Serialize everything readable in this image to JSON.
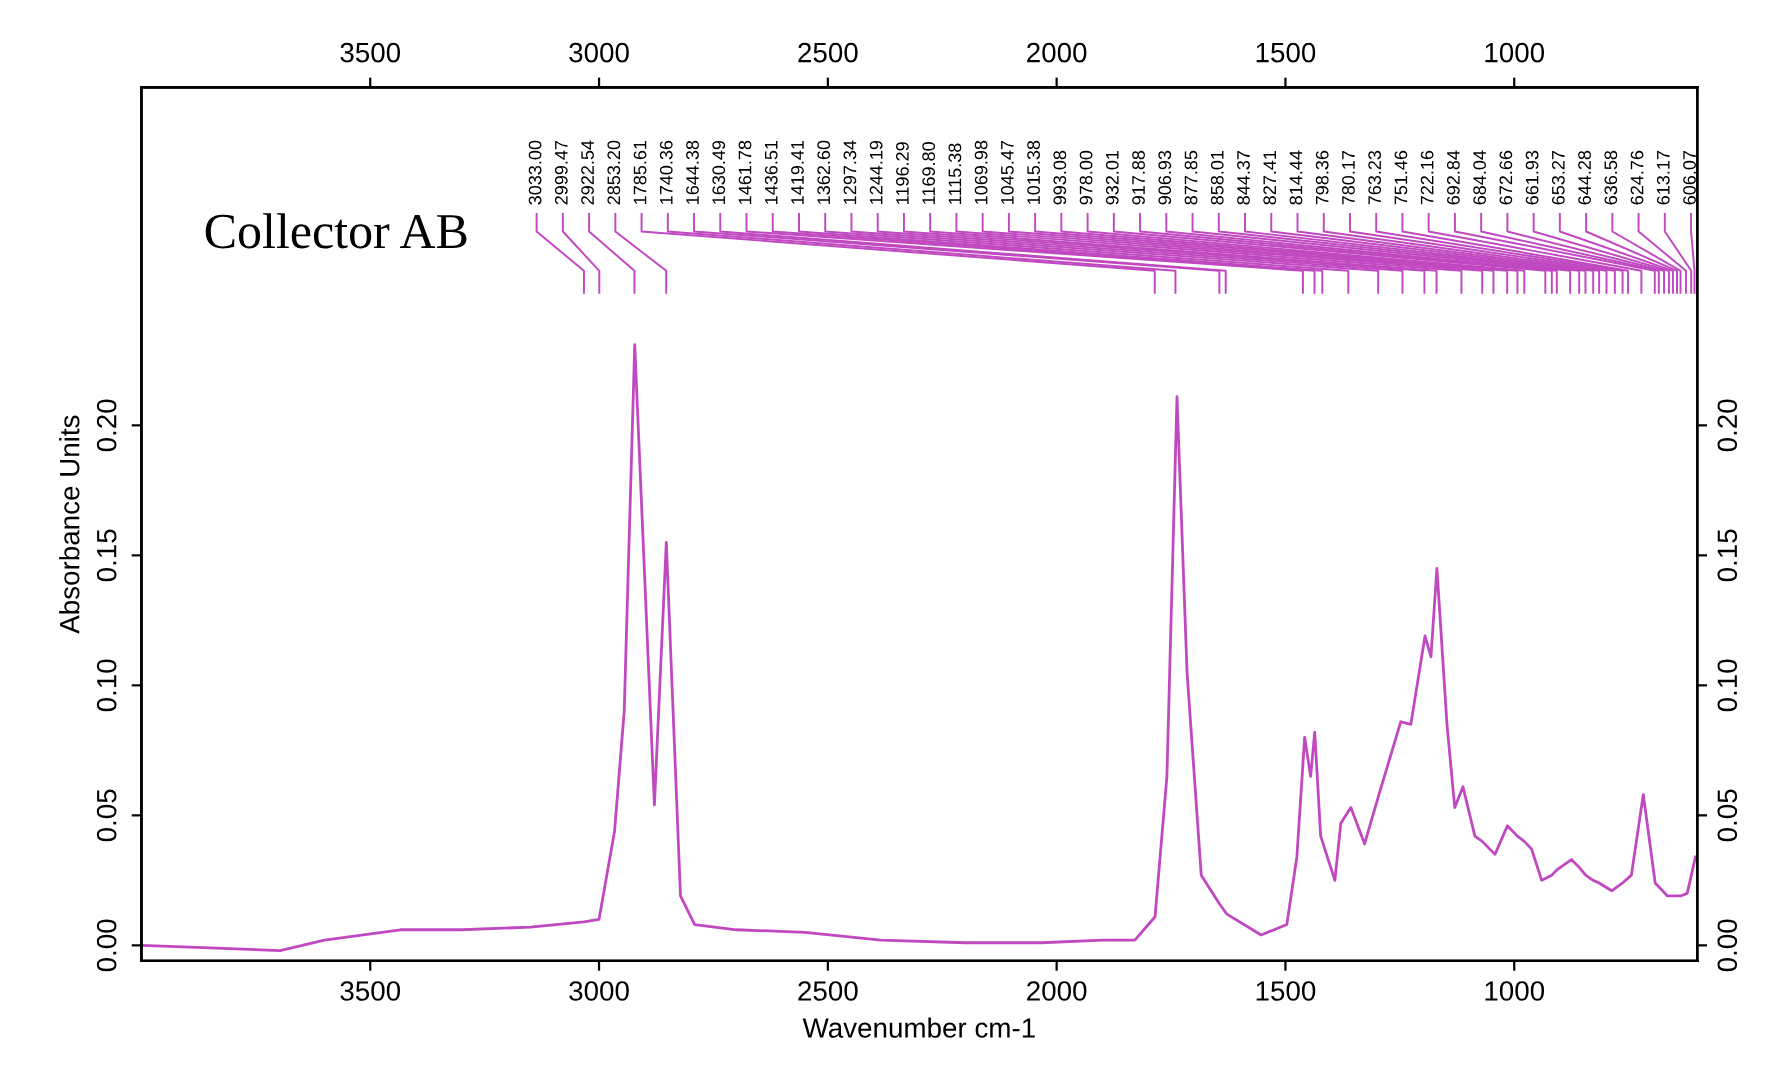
{
  "chart_data": {
    "type": "line",
    "xlabel": "Wavenumber cm-1",
    "ylabel": "Absorbance Units",
    "xlim": [
      4000,
      600
    ],
    "xticks": [
      3500,
      3000,
      2500,
      2000,
      1500,
      1000
    ],
    "x2lim": [
      4000,
      600
    ],
    "x2ticks": [
      3500,
      3000,
      2500,
      2000,
      1500,
      1000
    ],
    "ylim": [
      -0.006,
      0.33
    ],
    "yticks": [
      {
        "value": 0.0,
        "label": "0.00"
      },
      {
        "value": 0.05,
        "label": "0.05"
      },
      {
        "value": 0.1,
        "label": "0.10"
      },
      {
        "value": 0.15,
        "label": "0.15"
      },
      {
        "value": 0.2,
        "label": "0.20"
      }
    ],
    "y2lim": [
      -0.006,
      0.33
    ],
    "y2ticks": [
      {
        "value": 0.0,
        "label": "0.00"
      },
      {
        "value": 0.05,
        "label": "0.05"
      },
      {
        "value": 0.1,
        "label": "0.10"
      },
      {
        "value": 0.15,
        "label": "0.15"
      },
      {
        "value": 0.2,
        "label": "0.20"
      }
    ],
    "grid": false,
    "legend": false,
    "marker": "none",
    "line_style": "solid",
    "series": [
      {
        "color": "#c048c0",
        "x": [
          3999,
          3850,
          3697,
          3600,
          3434,
          3300,
          3150,
          3033,
          3000,
          2966,
          2945,
          2922,
          2879,
          2853,
          2822,
          2791,
          2700,
          2550,
          2384,
          2200,
          2034,
          1900,
          1829,
          1785,
          1759,
          1737,
          1715,
          1684,
          1644.38,
          1628,
          1553,
          1497,
          1475,
          1458,
          1445,
          1436,
          1423,
          1392,
          1379,
          1357,
          1327,
          1297.34,
          1248,
          1226,
          1195,
          1182,
          1169,
          1147,
          1130,
          1112,
          1086,
          1069.98,
          1042,
          1015,
          993.08,
          978,
          962,
          940,
          917.88,
          906.93,
          875,
          858.01,
          844,
          827.41,
          814.44,
          787,
          763.23,
          744,
          718,
          692,
          665,
          644.28,
          636.58,
          622,
          604
        ],
        "values": [
          0.0,
          -0.001,
          -0.002,
          0.002,
          0.006,
          0.006,
          0.007,
          0.009,
          0.01,
          0.044,
          0.09,
          0.231,
          0.054,
          0.155,
          0.019,
          0.008,
          0.006,
          0.005,
          0.002,
          0.001,
          0.001,
          0.002,
          0.002,
          0.011,
          0.065,
          0.211,
          0.105,
          0.027,
          0.016,
          0.012,
          0.004,
          0.008,
          0.034,
          0.08,
          0.065,
          0.082,
          0.042,
          0.025,
          0.047,
          0.053,
          0.039,
          0.057,
          0.086,
          0.085,
          0.119,
          0.111,
          0.145,
          0.085,
          0.053,
          0.061,
          0.042,
          0.04,
          0.035,
          0.046,
          0.042,
          0.04,
          0.037,
          0.025,
          0.027,
          0.029,
          0.033,
          0.03,
          0.027,
          0.025,
          0.024,
          0.021,
          0.024,
          0.027,
          0.058,
          0.024,
          0.019,
          0.019,
          0.019,
          0.02,
          0.034
        ]
      }
    ],
    "annotations": [
      "Collector AB",
      {
        "text": "3033.00",
        "x": 3033.0
      },
      {
        "text": "2999.47",
        "x": 2999.47
      },
      {
        "text": "2922.54",
        "x": 2922.54
      },
      {
        "text": "2853.20",
        "x": 2853.2
      },
      {
        "text": "1785.61",
        "x": 1785.61
      },
      {
        "text": "1740.36",
        "x": 1740.36
      },
      {
        "text": "1644.38",
        "x": 1644.38
      },
      {
        "text": "1630.49",
        "x": 1630.49
      },
      {
        "text": "1461.78",
        "x": 1461.78
      },
      {
        "text": "1436.51",
        "x": 1436.51
      },
      {
        "text": "1419.41",
        "x": 1419.41
      },
      {
        "text": "1362.60",
        "x": 1362.6
      },
      {
        "text": "1297.34",
        "x": 1297.34
      },
      {
        "text": "1244.19",
        "x": 1244.19
      },
      {
        "text": "1196.29",
        "x": 1196.29
      },
      {
        "text": "1169.80",
        "x": 1169.8
      },
      {
        "text": "1115.38",
        "x": 1115.38
      },
      {
        "text": "1069.98",
        "x": 1069.98
      },
      {
        "text": "1045.47",
        "x": 1045.47
      },
      {
        "text": "1015.38",
        "x": 1015.38
      },
      {
        "text": "993.08",
        "x": 993.08
      },
      {
        "text": "978.00",
        "x": 978.0
      },
      {
        "text": "932.01",
        "x": 932.01
      },
      {
        "text": "917.88",
        "x": 917.88
      },
      {
        "text": "906.93",
        "x": 906.93
      },
      {
        "text": "877.85",
        "x": 877.85
      },
      {
        "text": "858.01",
        "x": 858.01
      },
      {
        "text": "844.37",
        "x": 844.37
      },
      {
        "text": "827.41",
        "x": 827.41
      },
      {
        "text": "814.44",
        "x": 814.44
      },
      {
        "text": "798.36",
        "x": 798.36
      },
      {
        "text": "780.17",
        "x": 780.17
      },
      {
        "text": "763.23",
        "x": 763.23
      },
      {
        "text": "751.46",
        "x": 751.46
      },
      {
        "text": "722.16",
        "x": 722.16
      },
      {
        "text": "692.84",
        "x": 692.84
      },
      {
        "text": "684.04",
        "x": 684.04
      },
      {
        "text": "672.66",
        "x": 672.66
      },
      {
        "text": "661.93",
        "x": 661.93
      },
      {
        "text": "653.27",
        "x": 653.27
      },
      {
        "text": "644.28",
        "x": 644.28
      },
      {
        "text": "636.58",
        "x": 636.58
      },
      {
        "text": "624.76",
        "x": 624.76
      },
      {
        "text": "613.17",
        "x": 613.17
      },
      {
        "text": "606.07",
        "x": 606.07
      }
    ]
  }
}
